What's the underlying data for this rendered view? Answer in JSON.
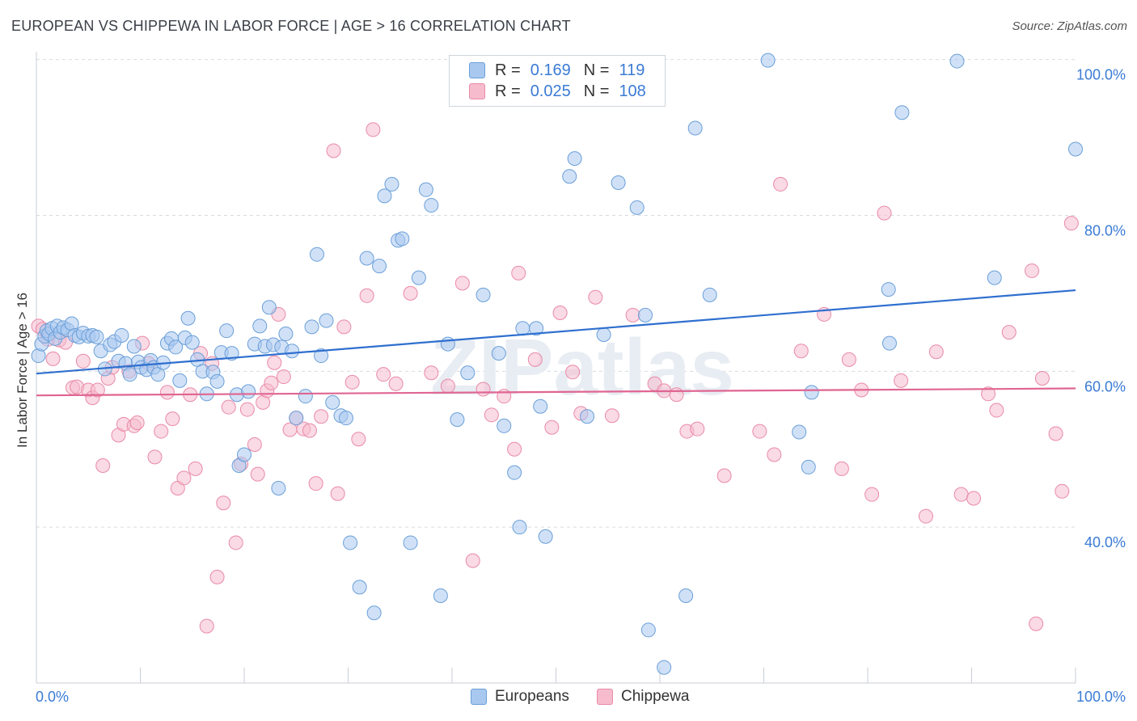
{
  "title": "EUROPEAN VS CHIPPEWA IN LABOR FORCE | AGE > 16 CORRELATION CHART",
  "source": "Source: ZipAtlas.com",
  "watermark": "ZIPatlas",
  "legend": {
    "rows": [
      {
        "r_label": "R =",
        "r_value": "0.169",
        "n_label": "N =",
        "n_value": "119"
      },
      {
        "r_label": "R =",
        "r_value": "0.025",
        "n_label": "N =",
        "n_value": "108"
      }
    ]
  },
  "bottom_legend": [
    "Europeans",
    "Chippewa"
  ],
  "colors": {
    "europeans_fill": "#a9c8f0",
    "europeans_stroke": "#6a9fd8",
    "europeans_line": "#2f6fcf",
    "chippewa_fill": "#f6bccd",
    "chippewa_stroke": "#e98aa8",
    "chippewa_line": "#e06592",
    "axis_label": "#3a7bd5",
    "grid": "#d7dbe0"
  },
  "chart_data": {
    "type": "scatter",
    "title": "EUROPEAN VS CHIPPEWA IN LABOR FORCE | AGE > 16 CORRELATION CHART",
    "xlabel": "",
    "ylabel": "In Labor Force | Age > 16",
    "xlim": [
      0,
      100
    ],
    "ylim": [
      20,
      101
    ],
    "x_tick_labels": [
      "0.0%",
      "100.0%"
    ],
    "y_ticks": [
      40,
      60,
      80,
      100
    ],
    "y_tick_labels": [
      "40.0%",
      "60.0%",
      "80.0%",
      "100.0%"
    ],
    "grid": true,
    "legend_position": "top-center",
    "series": [
      {
        "name": "Europeans",
        "R": 0.169,
        "N": 119,
        "trend": {
          "x": [
            0,
            100
          ],
          "y": [
            59.7,
            70.4
          ]
        },
        "points": [
          [
            0.2,
            62.0
          ],
          [
            0.5,
            63.5
          ],
          [
            0.8,
            64.5
          ],
          [
            1.0,
            65.2
          ],
          [
            1.2,
            64.8
          ],
          [
            1.5,
            65.5
          ],
          [
            1.8,
            64.2
          ],
          [
            2.0,
            65.8
          ],
          [
            2.3,
            65.0
          ],
          [
            2.6,
            65.6
          ],
          [
            3.0,
            65.3
          ],
          [
            3.4,
            66.1
          ],
          [
            3.7,
            64.6
          ],
          [
            4.1,
            64.4
          ],
          [
            4.5,
            64.9
          ],
          [
            5.0,
            64.5
          ],
          [
            5.4,
            64.6
          ],
          [
            5.8,
            64.4
          ],
          [
            6.2,
            62.6
          ],
          [
            6.6,
            60.3
          ],
          [
            7.1,
            63.4
          ],
          [
            7.5,
            63.8
          ],
          [
            7.9,
            61.3
          ],
          [
            8.2,
            64.6
          ],
          [
            8.6,
            61.0
          ],
          [
            9.0,
            59.6
          ],
          [
            9.4,
            63.2
          ],
          [
            9.8,
            61.2
          ],
          [
            10.1,
            60.5
          ],
          [
            10.6,
            60.2
          ],
          [
            11.0,
            61.4
          ],
          [
            11.3,
            60.5
          ],
          [
            11.7,
            59.6
          ],
          [
            12.2,
            61.1
          ],
          [
            12.6,
            63.6
          ],
          [
            13.0,
            64.2
          ],
          [
            13.4,
            63.1
          ],
          [
            13.8,
            58.8
          ],
          [
            14.3,
            64.3
          ],
          [
            14.6,
            66.8
          ],
          [
            15.0,
            63.7
          ],
          [
            15.5,
            61.5
          ],
          [
            16.0,
            60.0
          ],
          [
            16.4,
            57.1
          ],
          [
            17.0,
            59.9
          ],
          [
            17.4,
            58.7
          ],
          [
            17.8,
            62.4
          ],
          [
            18.3,
            65.2
          ],
          [
            18.8,
            62.3
          ],
          [
            19.3,
            57.0
          ],
          [
            19.5,
            47.9
          ],
          [
            20.0,
            49.3
          ],
          [
            20.4,
            57.4
          ],
          [
            21.0,
            63.5
          ],
          [
            21.5,
            65.8
          ],
          [
            22.0,
            63.2
          ],
          [
            22.4,
            68.2
          ],
          [
            22.8,
            63.4
          ],
          [
            23.3,
            45.0
          ],
          [
            23.6,
            63.1
          ],
          [
            24.0,
            64.8
          ],
          [
            24.6,
            62.6
          ],
          [
            25.0,
            54.0
          ],
          [
            25.9,
            56.8
          ],
          [
            26.5,
            65.7
          ],
          [
            27.0,
            75.0
          ],
          [
            27.4,
            62.0
          ],
          [
            27.9,
            66.5
          ],
          [
            28.5,
            56.0
          ],
          [
            29.3,
            54.3
          ],
          [
            29.8,
            54.0
          ],
          [
            30.2,
            38.0
          ],
          [
            31.1,
            32.3
          ],
          [
            31.8,
            74.5
          ],
          [
            32.5,
            29.0
          ],
          [
            33.0,
            73.5
          ],
          [
            33.5,
            82.5
          ],
          [
            34.2,
            84.0
          ],
          [
            34.8,
            76.8
          ],
          [
            35.2,
            77.0
          ],
          [
            36.0,
            38.0
          ],
          [
            36.8,
            72.0
          ],
          [
            37.5,
            83.3
          ],
          [
            38.0,
            81.3
          ],
          [
            38.9,
            31.2
          ],
          [
            39.6,
            63.5
          ],
          [
            40.5,
            53.8
          ],
          [
            41.5,
            59.8
          ],
          [
            43.0,
            69.8
          ],
          [
            44.5,
            62.3
          ],
          [
            45.0,
            53.0
          ],
          [
            46.0,
            47.0
          ],
          [
            46.5,
            40.0
          ],
          [
            46.8,
            65.5
          ],
          [
            48.1,
            65.5
          ],
          [
            48.5,
            55.5
          ],
          [
            49.0,
            38.8
          ],
          [
            51.3,
            85.0
          ],
          [
            51.8,
            87.3
          ],
          [
            53.0,
            54.2
          ],
          [
            54.6,
            64.7
          ],
          [
            56.0,
            84.2
          ],
          [
            57.8,
            81.0
          ],
          [
            58.6,
            67.2
          ],
          [
            58.9,
            26.8
          ],
          [
            60.4,
            22.0
          ],
          [
            62.5,
            31.2
          ],
          [
            63.4,
            91.2
          ],
          [
            64.8,
            69.8
          ],
          [
            70.4,
            99.9
          ],
          [
            73.4,
            52.2
          ],
          [
            74.3,
            47.7
          ],
          [
            74.6,
            57.3
          ],
          [
            82.0,
            70.5
          ],
          [
            82.1,
            63.6
          ],
          [
            83.3,
            93.2
          ],
          [
            88.6,
            99.8
          ],
          [
            92.2,
            72.0
          ],
          [
            100.0,
            88.5
          ]
        ]
      },
      {
        "name": "Chippewa",
        "R": 0.025,
        "N": 108,
        "trend": {
          "x": [
            0,
            100
          ],
          "y": [
            56.9,
            57.8
          ]
        },
        "points": [
          [
            0.2,
            65.8
          ],
          [
            0.6,
            65.4
          ],
          [
            1.1,
            64.1
          ],
          [
            1.6,
            61.6
          ],
          [
            2.2,
            64.0
          ],
          [
            2.8,
            63.7
          ],
          [
            3.5,
            57.9
          ],
          [
            3.9,
            58.0
          ],
          [
            4.5,
            61.3
          ],
          [
            5.0,
            57.6
          ],
          [
            5.4,
            56.6
          ],
          [
            5.9,
            57.6
          ],
          [
            6.4,
            47.9
          ],
          [
            6.9,
            59.1
          ],
          [
            7.3,
            60.5
          ],
          [
            7.9,
            51.8
          ],
          [
            8.4,
            53.2
          ],
          [
            8.9,
            60.0
          ],
          [
            9.4,
            53.0
          ],
          [
            9.7,
            53.4
          ],
          [
            10.2,
            63.6
          ],
          [
            10.8,
            61.0
          ],
          [
            11.4,
            49.0
          ],
          [
            12.0,
            52.3
          ],
          [
            12.6,
            57.3
          ],
          [
            13.1,
            53.9
          ],
          [
            13.6,
            45.0
          ],
          [
            14.2,
            46.3
          ],
          [
            14.8,
            57.0
          ],
          [
            15.3,
            47.5
          ],
          [
            15.8,
            62.3
          ],
          [
            16.4,
            27.3
          ],
          [
            16.9,
            61.0
          ],
          [
            17.4,
            33.6
          ],
          [
            18.0,
            43.1
          ],
          [
            18.5,
            55.4
          ],
          [
            19.2,
            38.0
          ],
          [
            19.7,
            48.1
          ],
          [
            20.3,
            55.1
          ],
          [
            21.0,
            50.6
          ],
          [
            21.3,
            46.8
          ],
          [
            21.8,
            56.0
          ],
          [
            22.2,
            57.5
          ],
          [
            22.6,
            58.5
          ],
          [
            22.9,
            61.1
          ],
          [
            23.3,
            67.3
          ],
          [
            23.8,
            59.3
          ],
          [
            24.4,
            52.5
          ],
          [
            25.0,
            54.0
          ],
          [
            25.7,
            52.6
          ],
          [
            26.3,
            52.4
          ],
          [
            26.9,
            45.6
          ],
          [
            27.4,
            54.2
          ],
          [
            28.6,
            88.3
          ],
          [
            29.0,
            44.3
          ],
          [
            29.6,
            65.7
          ],
          [
            30.4,
            58.6
          ],
          [
            31.0,
            51.3
          ],
          [
            31.8,
            69.7
          ],
          [
            32.4,
            91.0
          ],
          [
            33.4,
            59.6
          ],
          [
            34.6,
            58.4
          ],
          [
            36.0,
            70.0
          ],
          [
            38.0,
            59.8
          ],
          [
            39.6,
            58.1
          ],
          [
            41.0,
            71.3
          ],
          [
            42.0,
            35.7
          ],
          [
            43.0,
            57.7
          ],
          [
            43.8,
            54.4
          ],
          [
            45.0,
            56.8
          ],
          [
            46.0,
            50.0
          ],
          [
            46.4,
            72.6
          ],
          [
            48.0,
            61.5
          ],
          [
            49.6,
            52.8
          ],
          [
            50.4,
            67.5
          ],
          [
            51.6,
            59.9
          ],
          [
            52.4,
            54.6
          ],
          [
            53.8,
            69.5
          ],
          [
            55.4,
            54.3
          ],
          [
            57.4,
            67.2
          ],
          [
            59.5,
            58.4
          ],
          [
            60.4,
            57.5
          ],
          [
            61.6,
            57.0
          ],
          [
            62.6,
            52.3
          ],
          [
            63.6,
            52.6
          ],
          [
            66.2,
            46.6
          ],
          [
            69.6,
            52.3
          ],
          [
            71.0,
            49.3
          ],
          [
            71.6,
            84.0
          ],
          [
            73.6,
            62.6
          ],
          [
            75.8,
            67.3
          ],
          [
            77.5,
            47.5
          ],
          [
            78.2,
            61.5
          ],
          [
            79.4,
            57.6
          ],
          [
            80.4,
            44.2
          ],
          [
            81.6,
            80.3
          ],
          [
            83.2,
            58.8
          ],
          [
            85.6,
            41.4
          ],
          [
            86.6,
            62.5
          ],
          [
            89.0,
            44.2
          ],
          [
            90.2,
            43.7
          ],
          [
            91.6,
            57.1
          ],
          [
            92.4,
            55.0
          ],
          [
            93.6,
            65.0
          ],
          [
            95.8,
            72.9
          ],
          [
            96.2,
            27.6
          ],
          [
            96.8,
            59.1
          ],
          [
            98.1,
            52.0
          ],
          [
            98.7,
            44.6
          ],
          [
            99.6,
            79.0
          ]
        ]
      }
    ]
  }
}
